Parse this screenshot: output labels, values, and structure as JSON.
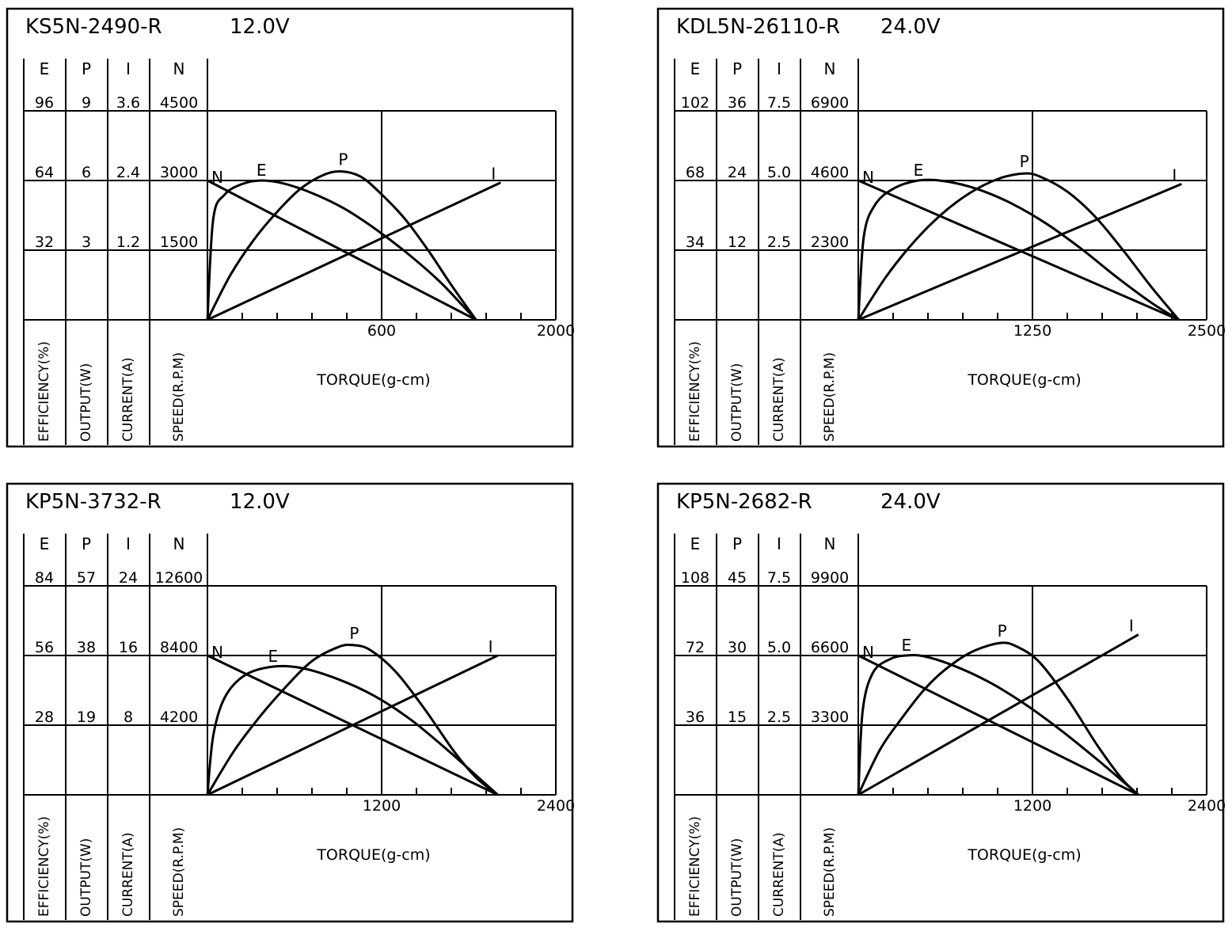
{
  "chart_data": [
    {
      "type": "line",
      "title": "KS5N-2490-R",
      "voltage": "12.0V",
      "column_headers": [
        "E",
        "P",
        "I",
        "N"
      ],
      "axis_labels": [
        "EFFICIENCY(%)",
        "OUTPUT(W)",
        "CURRENT(A)",
        "SPEED(R.P.M)"
      ],
      "y_ticks": [
        [
          "96",
          "9",
          "3.6",
          "4500"
        ],
        [
          "64",
          "6",
          "2.4",
          "3000"
        ],
        [
          "32",
          "3",
          "1.2",
          "1500"
        ]
      ],
      "x_label": "TORQUE(g-cm)",
      "x_ticks": [
        "600",
        "2000"
      ],
      "xlim": [
        0,
        1200
      ],
      "ylim": [
        0,
        3
      ],
      "curve_labels": {
        "N": "N",
        "E": "E",
        "P": "P",
        "I": "I"
      },
      "series": [
        {
          "name": "N",
          "x": [
            0,
            925
          ],
          "y": [
            2.0,
            0
          ]
        },
        {
          "name": "E",
          "x": [
            0,
            20,
            60,
            120,
            185,
            260,
            360,
            470,
            580,
            690,
            800,
            880,
            925
          ],
          "y": [
            0,
            1.45,
            1.8,
            1.95,
            2.0,
            1.96,
            1.82,
            1.6,
            1.3,
            0.95,
            0.55,
            0.2,
            0
          ]
        },
        {
          "name": "P",
          "x": [
            0,
            80,
            160,
            240,
            320,
            400,
            462,
            530,
            600,
            680,
            760,
            840,
            925
          ],
          "y": [
            0,
            0.65,
            1.15,
            1.55,
            1.88,
            2.08,
            2.13,
            2.05,
            1.8,
            1.45,
            1.0,
            0.5,
            0
          ]
        },
        {
          "name": "I",
          "x": [
            0,
            1010
          ],
          "y": [
            0,
            1.97
          ]
        }
      ]
    },
    {
      "type": "line",
      "title": "KDL5N-26110-R",
      "voltage": "24.0V",
      "column_headers": [
        "E",
        "P",
        "I",
        "N"
      ],
      "axis_labels": [
        "EFFICIENCY(%)",
        "OUTPUT(W)",
        "CURRENT(A)",
        "SPEED(R.P.M)"
      ],
      "y_ticks": [
        [
          "102",
          "36",
          "7.5",
          "6900"
        ],
        [
          "68",
          "24",
          "5.0",
          "4600"
        ],
        [
          "34",
          "12",
          "2.5",
          "2300"
        ]
      ],
      "x_label": "TORQUE(g-cm)",
      "x_ticks": [
        "1250",
        "2500"
      ],
      "xlim": [
        0,
        2500
      ],
      "ylim": [
        0,
        3
      ],
      "curve_labels": {
        "N": "N",
        "E": "E",
        "P": "P",
        "I": "I"
      },
      "series": [
        {
          "name": "N",
          "x": [
            0,
            2300
          ],
          "y": [
            2.0,
            0
          ]
        },
        {
          "name": "E",
          "x": [
            0,
            40,
            120,
            250,
            430,
            620,
            850,
            1100,
            1350,
            1600,
            1850,
            2100,
            2300
          ],
          "y": [
            0,
            1.2,
            1.65,
            1.88,
            2.0,
            1.99,
            1.88,
            1.67,
            1.38,
            1.02,
            0.62,
            0.25,
            0
          ]
        },
        {
          "name": "P",
          "x": [
            0,
            200,
            400,
            600,
            800,
            1000,
            1180,
            1300,
            1500,
            1700,
            1900,
            2100,
            2300
          ],
          "y": [
            0,
            0.62,
            1.12,
            1.52,
            1.82,
            2.02,
            2.1,
            2.06,
            1.84,
            1.48,
            1.0,
            0.48,
            0
          ]
        },
        {
          "name": "I",
          "x": [
            0,
            2320
          ],
          "y": [
            0,
            1.95
          ]
        }
      ]
    },
    {
      "type": "line",
      "title": "KP5N-3732-R",
      "voltage": "12.0V",
      "column_headers": [
        "E",
        "P",
        "I",
        "N"
      ],
      "axis_labels": [
        "EFFICIENCY(%)",
        "OUTPUT(W)",
        "CURRENT(A)",
        "SPEED(R.P.M)"
      ],
      "y_ticks": [
        [
          "84",
          "57",
          "24",
          "12600"
        ],
        [
          "56",
          "38",
          "16",
          "8400"
        ],
        [
          "28",
          "19",
          "8",
          "4200"
        ]
      ],
      "x_label": "TORQUE(g-cm)",
      "x_ticks": [
        "1200",
        "2400"
      ],
      "xlim": [
        0,
        2400
      ],
      "ylim": [
        0,
        3
      ],
      "curve_labels": {
        "N": "N",
        "E": "E",
        "P": "P",
        "I": "I"
      },
      "series": [
        {
          "name": "N",
          "x": [
            0,
            2000
          ],
          "y": [
            2.0,
            0
          ]
        },
        {
          "name": "E",
          "x": [
            0,
            40,
            120,
            260,
            450,
            650,
            900,
            1150,
            1400,
            1650,
            1850,
            2000
          ],
          "y": [
            0,
            0.85,
            1.4,
            1.72,
            1.84,
            1.82,
            1.66,
            1.42,
            1.08,
            0.65,
            0.28,
            0
          ]
        },
        {
          "name": "P",
          "x": [
            0,
            180,
            360,
            540,
            720,
            900,
            1000,
            1120,
            1300,
            1500,
            1700,
            1850,
            2000
          ],
          "y": [
            0,
            0.62,
            1.12,
            1.55,
            1.92,
            2.12,
            2.15,
            2.08,
            1.76,
            1.22,
            0.62,
            0.25,
            0
          ]
        },
        {
          "name": "I",
          "x": [
            0,
            2000
          ],
          "y": [
            0,
            2.0
          ]
        }
      ]
    },
    {
      "type": "line",
      "title": "KP5N-2682-R",
      "voltage": "24.0V",
      "column_headers": [
        "E",
        "P",
        "I",
        "N"
      ],
      "axis_labels": [
        "EFFICIENCY(%)",
        "OUTPUT(W)",
        "CURRENT(A)",
        "SPEED(R.P.M)"
      ],
      "y_ticks": [
        [
          "108",
          "45",
          "7.5",
          "9900"
        ],
        [
          "72",
          "30",
          "5.0",
          "6600"
        ],
        [
          "36",
          "15",
          "2.5",
          "3300"
        ]
      ],
      "x_label": "TORQUE(g-cm)",
      "x_ticks": [
        "1200",
        "2400"
      ],
      "xlim": [
        0,
        2400
      ],
      "ylim": [
        0,
        3
      ],
      "curve_labels": {
        "N": "N",
        "E": "E",
        "P": "P",
        "I": "I"
      },
      "series": [
        {
          "name": "N",
          "x": [
            0,
            1930
          ],
          "y": [
            2.0,
            0
          ]
        },
        {
          "name": "E",
          "x": [
            0,
            30,
            100,
            220,
            330,
            450,
            650,
            900,
            1150,
            1400,
            1650,
            1830,
            1930
          ],
          "y": [
            0,
            1.2,
            1.75,
            1.95,
            2.0,
            1.99,
            1.86,
            1.62,
            1.3,
            0.92,
            0.5,
            0.18,
            0
          ]
        },
        {
          "name": "P",
          "x": [
            0,
            150,
            300,
            450,
            600,
            780,
            980,
            1100,
            1250,
            1450,
            1650,
            1820,
            1930
          ],
          "y": [
            0,
            0.65,
            1.1,
            1.5,
            1.8,
            2.05,
            2.18,
            2.12,
            1.9,
            1.35,
            0.7,
            0.22,
            0
          ]
        },
        {
          "name": "I",
          "x": [
            0,
            1930
          ],
          "y": [
            0,
            2.3
          ]
        }
      ]
    }
  ]
}
